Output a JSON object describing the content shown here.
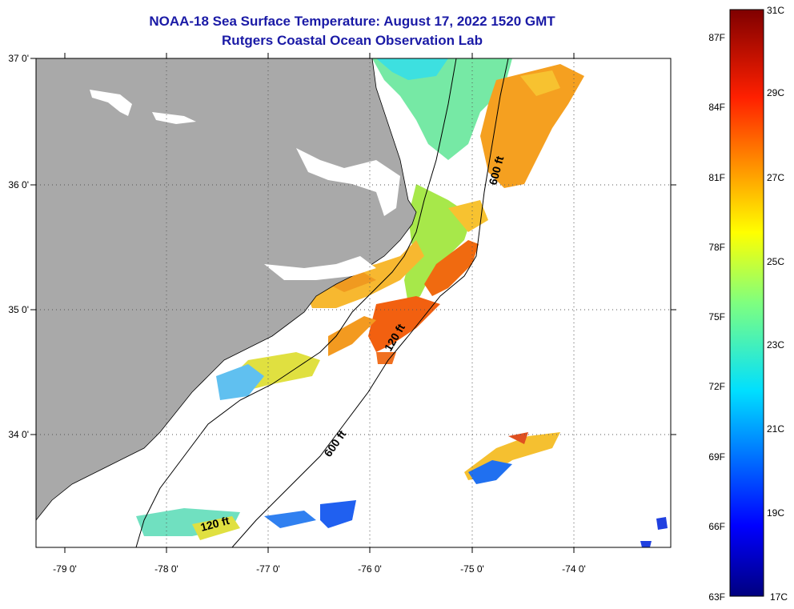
{
  "title": "NOAA-18 Sea Surface Temperature:  August 17, 2022 1520 GMT",
  "subtitle": "Rutgers Coastal Ocean Observation Lab",
  "map": {
    "lon_labels": [
      "-79 0'",
      "-78 0'",
      "-77 0'",
      "-76 0'",
      "-75 0'",
      "-74 0'"
    ],
    "lat_labels": [
      "37 0'",
      "36 0'",
      "35 0'",
      "34 0'"
    ],
    "contours": [
      "600 ft",
      "120 ft",
      "600 ft",
      "120 ft"
    ],
    "land_color": "#a9a9a9",
    "ocean_color": "#ffffff"
  },
  "colorbar": {
    "celsius": [
      "31C",
      "29C",
      "27C",
      "25C",
      "23C",
      "21C",
      "19C",
      "17C"
    ],
    "fahrenheit": [
      "87F",
      "84F",
      "81F",
      "78F",
      "75F",
      "72F",
      "69F",
      "66F",
      "63F"
    ]
  }
}
